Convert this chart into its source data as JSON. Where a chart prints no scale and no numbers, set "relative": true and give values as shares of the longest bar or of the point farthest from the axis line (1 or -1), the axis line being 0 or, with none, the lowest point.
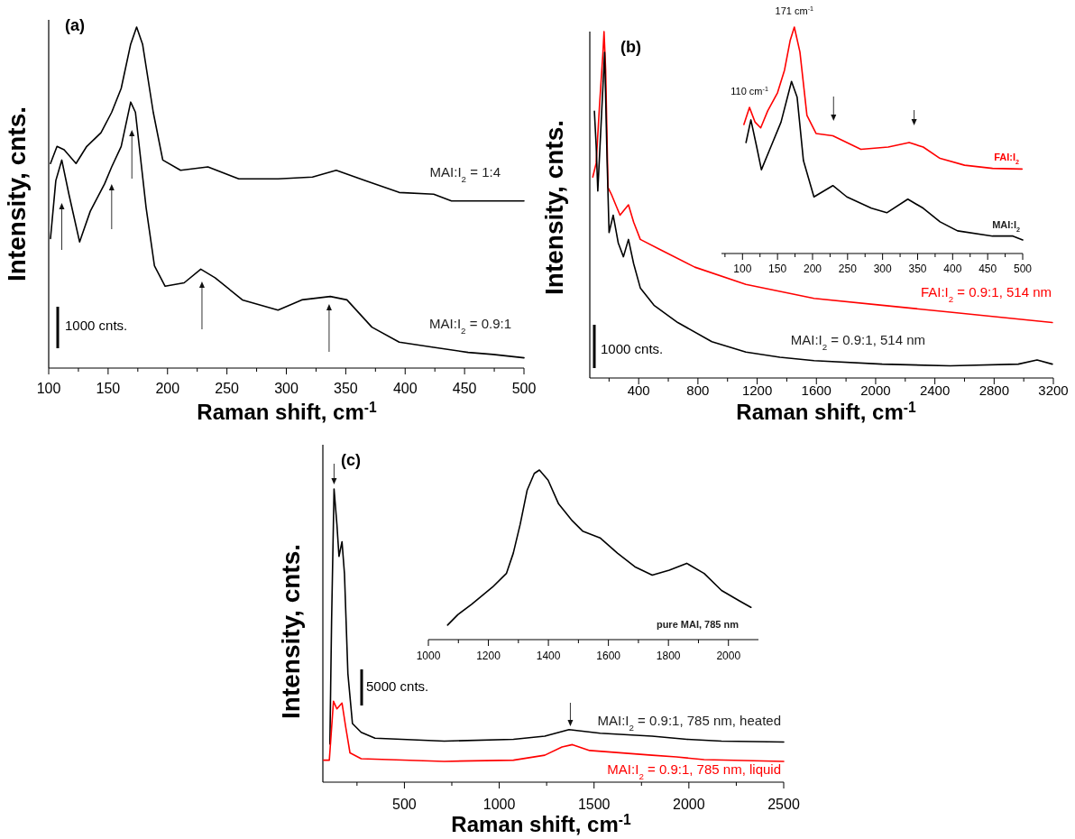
{
  "chart_data": [
    {
      "type": "line",
      "title": "(a)",
      "xlabel": "Raman shift, cm$^{-1}$",
      "ylabel": "Intensity, cnts.",
      "relative": true,
      "xlim": [
        100,
        500
      ],
      "xticks": [
        100,
        {
          "value": 125,
          "label": null
        },
        150,
        {
          "value": 175,
          "label": null
        },
        200,
        {
          "value": 225,
          "label": null
        },
        250,
        {
          "value": 275,
          "label": null
        },
        300,
        {
          "value": 325,
          "label": null
        },
        350,
        {
          "value": 375,
          "label": null
        },
        400,
        {
          "value": 425,
          "label": null
        },
        450,
        {
          "value": 475,
          "label": null
        },
        500
      ],
      "annotations": [
        "1000 cnts."
      ],
      "series": [
        {
          "name": "MAI:I$_{2}$ = 1:4",
          "color": "#000000",
          "x": [
            101.5,
            107,
            113,
            123,
            132,
            144,
            153,
            161,
            169,
            174,
            179,
            188,
            196,
            211,
            234,
            260,
            293,
            322,
            342,
            366,
            395,
            424,
            439,
            468,
            500
          ],
          "values": [
            0.6,
            0.65,
            0.64,
            0.6,
            0.65,
            0.69,
            0.75,
            0.82,
            0.95,
            1.0,
            0.95,
            0.75,
            0.61,
            0.58,
            0.59,
            0.555,
            0.555,
            0.56,
            0.58,
            0.55,
            0.515,
            0.51,
            0.49,
            0.49,
            0.49
          ]
        },
        {
          "name": "MAI:I$_{2}$ = 0.9:1",
          "color": "#000000",
          "x": [
            101.5,
            106,
            111,
            117,
            126,
            135,
            147,
            153,
            161,
            169,
            173,
            182,
            189,
            198,
            214,
            228,
            240,
            263,
            293,
            313,
            337,
            351,
            372,
            395,
            424,
            453,
            474,
            500
          ],
          "values": [
            0.38,
            0.55,
            0.61,
            0.51,
            0.37,
            0.46,
            0.54,
            0.59,
            0.65,
            0.78,
            0.75,
            0.47,
            0.3,
            0.24,
            0.25,
            0.29,
            0.265,
            0.2,
            0.17,
            0.2,
            0.21,
            0.2,
            0.12,
            0.076,
            0.061,
            0.046,
            0.04,
            0.03
          ]
        }
      ]
    },
    {
      "type": "line",
      "title": "(b)",
      "xlabel": "Raman shift, cm$^{-1}$",
      "ylabel": "Intensity, cnts.",
      "relative": true,
      "xlim": [
        70,
        3200
      ],
      "xticks": [
        {
          "value": 200,
          "label": null
        },
        400,
        {
          "value": 600,
          "label": null
        },
        800,
        {
          "value": 1000,
          "label": null
        },
        1200,
        {
          "value": 1400,
          "label": null
        },
        1600,
        {
          "value": 1800,
          "label": null
        },
        2000,
        {
          "value": 2200,
          "label": null
        },
        2400,
        {
          "value": 2600,
          "label": null
        },
        2800,
        {
          "value": 3000,
          "label": null
        },
        3200
      ],
      "annotations": [
        "1000 cnts."
      ],
      "series": [
        {
          "name": "FAI:I$_{2}$ = 0.9:1, 514 nm",
          "color": "#ff0000",
          "x": [
            90,
            113,
            136,
            159,
            166,
            177,
            193,
            216,
            274,
            331,
            366,
            411,
            549,
            779,
            1124,
            1584,
            2044,
            2503,
            2848,
            3193
          ],
          "values": [
            0.58,
            0.62,
            0.79,
            0.94,
            1.0,
            0.89,
            0.55,
            0.53,
            0.47,
            0.5,
            0.45,
            0.4,
            0.37,
            0.32,
            0.27,
            0.23,
            0.21,
            0.19,
            0.175,
            0.16
          ]
        },
        {
          "name": "MAI:I$_{2}$ = 0.9:1, 514 nm",
          "color": "#000000",
          "x": [
            101,
            113,
            124,
            147,
            170,
            186,
            200,
            228,
            262,
            297,
            331,
            366,
            411,
            503,
            664,
            894,
            1124,
            1354,
            1584,
            2044,
            2503,
            2963,
            3090,
            3193
          ],
          "values": [
            0.77,
            0.67,
            0.54,
            0.74,
            0.94,
            0.64,
            0.42,
            0.47,
            0.39,
            0.35,
            0.4,
            0.33,
            0.26,
            0.21,
            0.16,
            0.105,
            0.075,
            0.06,
            0.05,
            0.04,
            0.035,
            0.04,
            0.052,
            0.04
          ]
        }
      ]
    },
    {
      "type": "line",
      "relative": true,
      "xlim": [
        70,
        500
      ],
      "xticks": [
        {
          "value": 75,
          "label": null
        },
        100,
        {
          "value": 125,
          "label": null
        },
        150,
        {
          "value": 175,
          "label": null
        },
        200,
        {
          "value": 225,
          "label": null
        },
        250,
        {
          "value": 275,
          "label": null
        },
        300,
        {
          "value": 325,
          "label": null
        },
        350,
        {
          "value": 375,
          "label": null
        },
        400,
        {
          "value": 425,
          "label": null
        },
        450,
        {
          "value": 475,
          "label": null
        },
        500
      ],
      "annotations": [
        {
          "text": "110 cm$^{-1}$",
          "x": 110,
          "y": 0.645
        },
        {
          "text": "171 cm$^{-1}$",
          "x": 174,
          "y": 1.0
        }
      ],
      "series": [
        {
          "name": "FAI:I$_{2}$",
          "color": "#ff0000",
          "x": [
            102,
            110,
            118,
            126,
            136,
            150,
            160,
            168,
            174,
            182,
            192,
            205,
            229,
            249,
            269,
            308,
            338,
            358,
            382,
            417,
            457,
            499
          ],
          "values": [
            0.57,
            0.645,
            0.58,
            0.555,
            0.63,
            0.71,
            0.81,
            0.94,
            1.0,
            0.89,
            0.61,
            0.53,
            0.52,
            0.49,
            0.46,
            0.47,
            0.49,
            0.47,
            0.42,
            0.39,
            0.376,
            0.373
          ]
        },
        {
          "name": "MAI:I$_{2}$",
          "color": "#000000",
          "x": [
            105,
            112,
            120,
            127,
            141,
            155,
            170,
            178,
            187,
            202,
            229,
            249,
            284,
            306,
            336,
            358,
            382,
            407,
            457,
            486,
            500
          ],
          "values": [
            0.49,
            0.59,
            0.475,
            0.37,
            0.475,
            0.58,
            0.76,
            0.69,
            0.41,
            0.25,
            0.3,
            0.25,
            0.2,
            0.18,
            0.24,
            0.2,
            0.14,
            0.1,
            0.077,
            0.077,
            0.06
          ]
        }
      ]
    },
    {
      "type": "line",
      "title": "(c)",
      "xlabel": "Raman shift, cm$^{-1}$",
      "ylabel": "Intensity, cnts.",
      "relative": true,
      "xlim": [
        70,
        2500
      ],
      "xticks": [
        {
          "value": 250,
          "label": null
        },
        500,
        {
          "value": 750,
          "label": null
        },
        1000,
        {
          "value": 1250,
          "label": null
        },
        1500,
        {
          "value": 1750,
          "label": null
        },
        2000,
        {
          "value": 2250,
          "label": null
        },
        2500
      ],
      "annotations": [
        "5000 cnts."
      ],
      "series": [
        {
          "name": "MAI:I$_{2}$ = 0.9:1, 785 nm, heated",
          "color": "#000000",
          "x": [
            107,
            116,
            129,
            144,
            155,
            171,
            184,
            202,
            226,
            272,
            345,
            710,
            1075,
            1240,
            1368,
            1532,
            1806,
            1989,
            2172,
            2500
          ],
          "values": [
            0.13,
            0.55,
            1.0,
            0.88,
            0.77,
            0.82,
            0.71,
            0.37,
            0.2,
            0.17,
            0.15,
            0.14,
            0.146,
            0.157,
            0.179,
            0.167,
            0.157,
            0.146,
            0.14,
            0.137
          ]
        },
        {
          "name": "MAI:I$_{2}$ = 0.9:1, 785 nm, liquid",
          "color": "#ff0000",
          "x": [
            74,
            104,
            126,
            144,
            171,
            190,
            213,
            272,
            710,
            1075,
            1240,
            1331,
            1386,
            1477,
            1806,
            1934,
            2080,
            2500
          ],
          "values": [
            0.075,
            0.075,
            0.276,
            0.25,
            0.27,
            0.19,
            0.1,
            0.08,
            0.071,
            0.075,
            0.092,
            0.12,
            0.128,
            0.108,
            0.092,
            0.086,
            0.077,
            0.071
          ]
        }
      ]
    },
    {
      "type": "line",
      "relative": true,
      "xlim": [
        1000,
        2100
      ],
      "xticks": [
        1000,
        {
          "value": 1100,
          "label": null
        },
        1200,
        {
          "value": 1300,
          "label": null
        },
        1400,
        {
          "value": 1500,
          "label": null
        },
        1600,
        {
          "value": 1700,
          "label": null
        },
        1800,
        {
          "value": 1900,
          "label": null
        },
        2000
      ],
      "series": [
        {
          "name": "pure MAI, 785 nm",
          "color": "#000000",
          "x": [
            1064,
            1098,
            1145,
            1214,
            1260,
            1283,
            1306,
            1329,
            1353,
            1370,
            1399,
            1434,
            1480,
            1514,
            1572,
            1630,
            1688,
            1746,
            1803,
            1861,
            1919,
            1977,
            2035,
            2075
          ],
          "values": [
            0.086,
            0.147,
            0.21,
            0.31,
            0.39,
            0.51,
            0.68,
            0.88,
            0.98,
            1.0,
            0.94,
            0.8,
            0.7,
            0.64,
            0.6,
            0.51,
            0.43,
            0.38,
            0.41,
            0.45,
            0.39,
            0.29,
            0.23,
            0.19
          ]
        }
      ]
    }
  ]
}
